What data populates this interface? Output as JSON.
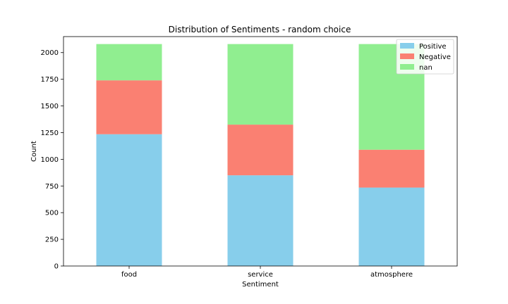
{
  "chart_data": {
    "type": "bar",
    "stacked": true,
    "title": "Distribution of Sentiments - random choice",
    "xlabel": "Sentiment",
    "ylabel": "Count",
    "categories": [
      "food",
      "service",
      "atmosphere"
    ],
    "ylim": [
      0,
      2150
    ],
    "yticks": [
      0,
      250,
      500,
      750,
      1000,
      1250,
      1500,
      1750,
      2000
    ],
    "grid": false,
    "legend_position": "top-right",
    "series": [
      {
        "name": "Positive",
        "color": "#87CEEB",
        "values": [
          1235,
          850,
          735
        ]
      },
      {
        "name": "Negative",
        "color": "#FA8072",
        "values": [
          505,
          475,
          355
        ]
      },
      {
        "name": "nan",
        "color": "#90EE90",
        "values": [
          340,
          755,
          990
        ]
      }
    ]
  }
}
